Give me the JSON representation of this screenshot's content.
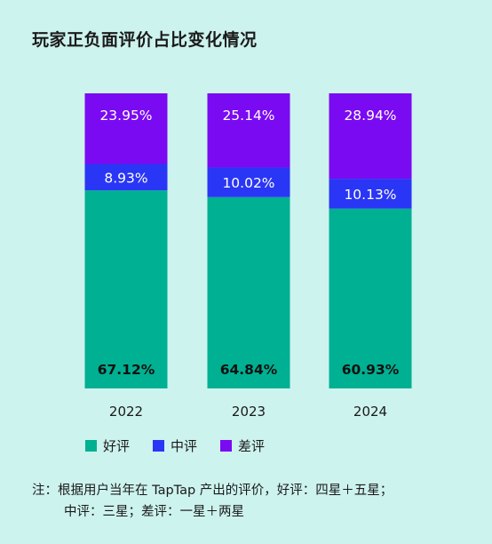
{
  "title": "玩家正负面评价占比变化情况",
  "legend": [
    {
      "label": "好评",
      "color": "#00b092"
    },
    {
      "label": "中评",
      "color": "#2a36f5"
    },
    {
      "label": "差评",
      "color": "#7a0af2"
    }
  ],
  "note": {
    "line1": "注：根据用户当年在 TapTap 产出的评价，好评：四星＋五星；",
    "line2": "中评：三星；差评：一星＋两星"
  },
  "chart_data": {
    "type": "bar",
    "stacked": true,
    "categories": [
      "2022",
      "2023",
      "2024"
    ],
    "series": [
      {
        "name": "好评",
        "values": [
          67.12,
          64.84,
          60.93
        ],
        "labels": [
          "67.12%",
          "64.84%",
          "60.93%"
        ],
        "color": "#00b092"
      },
      {
        "name": "中评",
        "values": [
          8.93,
          10.02,
          10.13
        ],
        "labels": [
          "8.93%",
          "10.02%",
          "10.13%"
        ],
        "color": "#2a36f5"
      },
      {
        "name": "差评",
        "values": [
          23.95,
          25.14,
          28.94
        ],
        "labels": [
          "23.95%",
          "25.14%",
          "28.94%"
        ],
        "color": "#7a0af2"
      }
    ],
    "ylim": [
      0,
      100
    ]
  }
}
